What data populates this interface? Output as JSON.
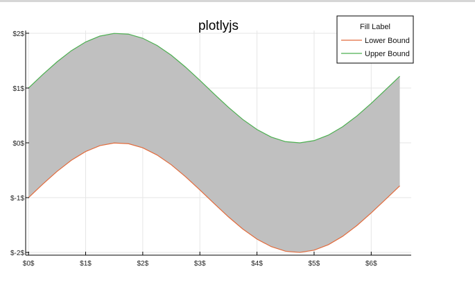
{
  "chart_data": {
    "type": "area",
    "title": "plotlyjs",
    "xlabel": "",
    "ylabel": "",
    "xlim": [
      -0.05,
      6.7
    ],
    "ylim": [
      -2.05,
      2.05
    ],
    "x_ticks": [
      0,
      1,
      2,
      3,
      4,
      5,
      6
    ],
    "x_tick_labels": [
      "$0$",
      "$1$",
      "$2$",
      "$3$",
      "$4$",
      "$5$",
      "$6$"
    ],
    "y_ticks": [
      2,
      1,
      0,
      -1,
      -2
    ],
    "y_tick_labels": [
      "$2$",
      "$1$",
      "$0$",
      "$-1$",
      "$-2$"
    ],
    "grid": true,
    "legend": {
      "placement": "top-right",
      "title": "Fill Label"
    },
    "fill": {
      "name": "Fill Label",
      "color": "#c0c0c0",
      "between": [
        "Lower Bound",
        "Upper Bound"
      ]
    },
    "series": [
      {
        "name": "Lower Bound",
        "color": "#e26b3c",
        "x": [
          0,
          0.25,
          0.5,
          0.75,
          1.0,
          1.25,
          1.5,
          1.75,
          2.0,
          2.25,
          2.5,
          2.75,
          3.0,
          3.25,
          3.5,
          3.75,
          4.0,
          4.25,
          4.5,
          4.75,
          5.0,
          5.25,
          5.5,
          5.75,
          6.0,
          6.25,
          6.5
        ],
        "y": [
          -1.0,
          -0.753,
          -0.521,
          -0.318,
          -0.159,
          -0.051,
          -0.003,
          -0.016,
          -0.091,
          -0.222,
          -0.401,
          -0.619,
          -0.859,
          -1.108,
          -1.351,
          -1.572,
          -1.757,
          -1.895,
          -1.978,
          -2.0,
          -1.959,
          -1.859,
          -1.706,
          -1.509,
          -1.279,
          -1.033,
          -0.785
        ]
      },
      {
        "name": "Upper Bound",
        "color": "#4caf50",
        "x": [
          0,
          0.25,
          0.5,
          0.75,
          1.0,
          1.25,
          1.5,
          1.75,
          2.0,
          2.25,
          2.5,
          2.75,
          3.0,
          3.25,
          3.5,
          3.75,
          4.0,
          4.25,
          4.5,
          4.75,
          5.0,
          5.25,
          5.5,
          5.75,
          6.0,
          6.25,
          6.5
        ],
        "y": [
          1.0,
          1.247,
          1.479,
          1.682,
          1.841,
          1.949,
          1.997,
          1.984,
          1.909,
          1.778,
          1.599,
          1.381,
          1.141,
          0.892,
          0.649,
          0.428,
          0.243,
          0.105,
          0.022,
          0.0,
          0.041,
          0.141,
          0.294,
          0.491,
          0.721,
          0.967,
          1.215
        ]
      }
    ]
  }
}
